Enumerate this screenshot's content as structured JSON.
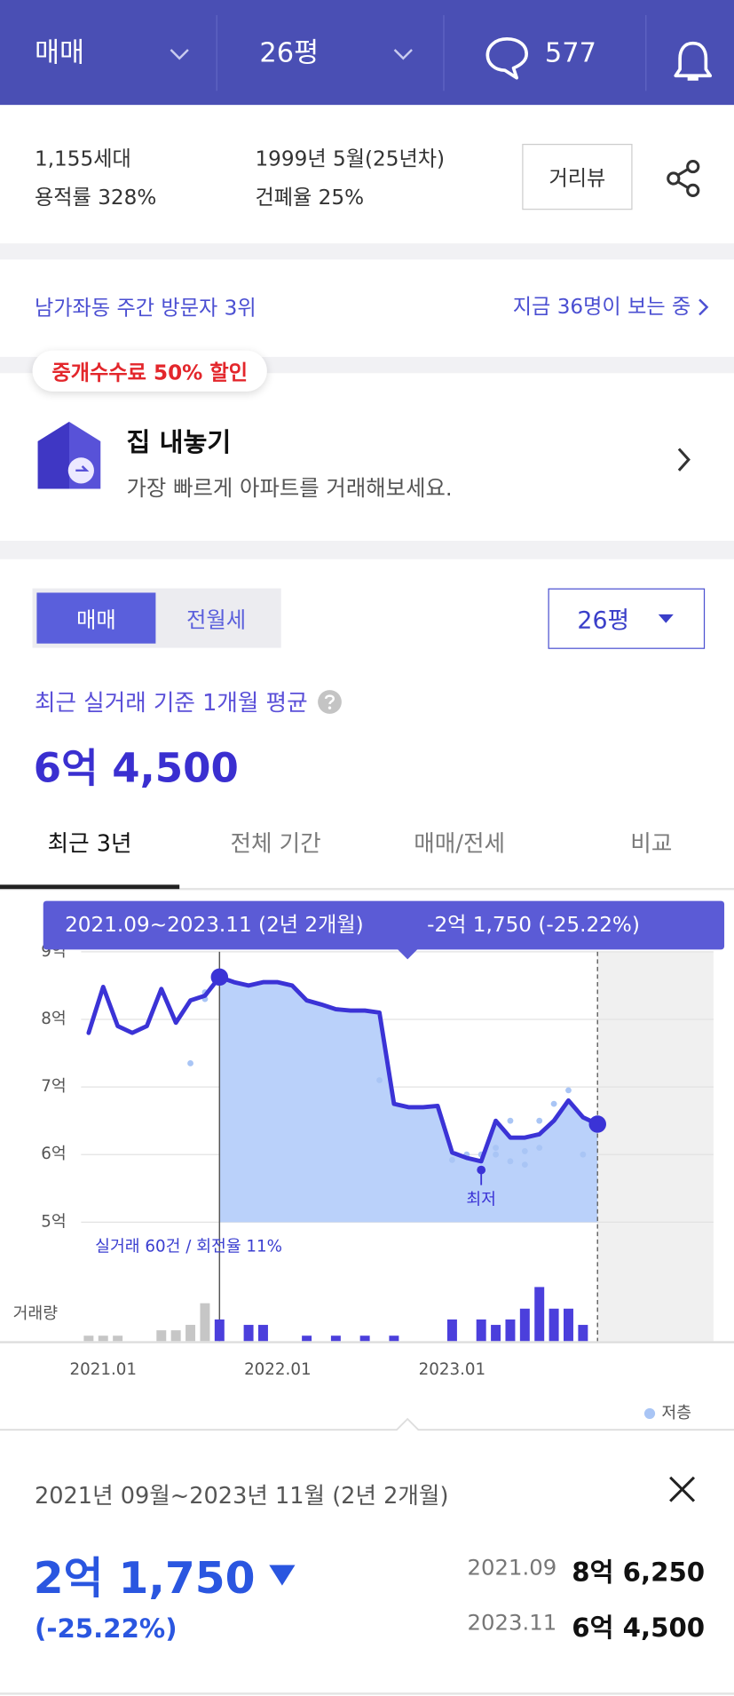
{
  "header": {
    "trade_type": "매매",
    "size": "26평",
    "comment_count": 577
  },
  "complex_info": {
    "households": "1,155세대",
    "floor_area_ratio": "용적률 328%",
    "built": "1999년 5월(25년차)",
    "building_coverage": "건폐율 25%",
    "street_view_button": "거리뷰"
  },
  "visitors": {
    "rank": "남가좌동 주간 방문자 3위",
    "viewing_now": "지금 36명이 보는 중"
  },
  "listing_promo": {
    "badge": "중개수수료 50% 할인",
    "title": "집 내놓기",
    "subtitle": "가장 빠르게 아파트를 거래해보세요."
  },
  "price_section": {
    "toggle": [
      "매매",
      "전월세"
    ],
    "size_dropdown": "26평",
    "average_label": "최근 실거래 기준 1개월 평균",
    "average_price": "6억 4,500",
    "tabs": [
      "최근 3년",
      "전체 기간",
      "매매/전세",
      "비교"
    ]
  },
  "chart_data": {
    "type": "line",
    "x": [
      "2020.12",
      "2021.01",
      "2021.02",
      "2021.03",
      "2021.04",
      "2021.05",
      "2021.06",
      "2021.07",
      "2021.08",
      "2021.09",
      "2021.10",
      "2021.11",
      "2021.12",
      "2022.01",
      "2022.02",
      "2022.03",
      "2022.04",
      "2022.05",
      "2022.06",
      "2022.07",
      "2022.08",
      "2022.09",
      "2022.10",
      "2022.11",
      "2022.12",
      "2023.01",
      "2023.02",
      "2023.03",
      "2023.04",
      "2023.05",
      "2023.06",
      "2023.07",
      "2023.08",
      "2023.09",
      "2023.10",
      "2023.11"
    ],
    "series": [
      {
        "color": "#3b33d6",
        "values": [
          7.8,
          8.48,
          7.9,
          7.8,
          7.9,
          8.45,
          7.95,
          8.28,
          8.35,
          8.625,
          8.55,
          8.5,
          8.55,
          8.55,
          8.5,
          8.28,
          8.22,
          8.15,
          8.13,
          8.13,
          8.1,
          6.75,
          6.7,
          6.7,
          6.72,
          6.03,
          5.95,
          5.9,
          6.5,
          6.25,
          6.25,
          6.3,
          6.5,
          6.8,
          6.55,
          6.45
        ]
      },
      {
        "name": "저층",
        "type": "scatter",
        "color": "#a9c5f5",
        "x": [
          "2021.07",
          "2021.08",
          "2021.08",
          "2022.08",
          "2023.01",
          "2023.02",
          "2023.03",
          "2023.04",
          "2023.04",
          "2023.05",
          "2023.05",
          "2023.06",
          "2023.06",
          "2023.07",
          "2023.07",
          "2023.08",
          "2023.09",
          "2023.10"
        ],
        "values": [
          7.35,
          8.4,
          8.3,
          7.1,
          5.92,
          6.0,
          6.0,
          6.0,
          6.1,
          6.5,
          5.9,
          5.85,
          6.05,
          6.1,
          6.5,
          6.75,
          6.95,
          6.0
        ]
      }
    ],
    "ylim": [
      5,
      9
    ],
    "yticks": [
      {
        "value": 5,
        "label": "5억"
      },
      {
        "value": 6,
        "label": "6억"
      },
      {
        "value": 7,
        "label": "7억"
      },
      {
        "value": 8,
        "label": "8억"
      },
      {
        "value": 9,
        "label": "9억"
      }
    ],
    "xticks": [
      "2021.01",
      "2022.01",
      "2023.01"
    ],
    "grid": true,
    "tooltip": {
      "period": "2021.09~2023.11 (2년 2개월)",
      "change": "-2억 1,750 (-25.22%)"
    },
    "annotations": [
      {
        "text": "최저",
        "x": "2023.03"
      }
    ],
    "volume": {
      "label": "거래량",
      "summary": "실거래 60건 / 회전율 11%",
      "color": "#4b3fdc",
      "inactive_color": "#c6c6c6",
      "values": [
        1,
        1,
        1,
        0,
        0,
        2,
        2,
        3,
        7,
        4,
        0,
        3,
        3,
        0,
        0,
        1,
        0,
        1,
        0,
        1,
        0,
        1,
        0,
        0,
        0,
        4,
        0,
        4,
        3,
        4,
        6,
        10,
        6,
        6,
        3,
        0
      ]
    },
    "legend": "bottom-right"
  },
  "comparison": {
    "period": "2021년 09월~2023년 11월 (2년 2개월)",
    "change": "2억 1,750",
    "change_percent": "(-25.22%)",
    "start": {
      "date": "2021.09",
      "price": "8억 6,250"
    },
    "end": {
      "date": "2023.11",
      "price": "6억 4,500"
    }
  }
}
